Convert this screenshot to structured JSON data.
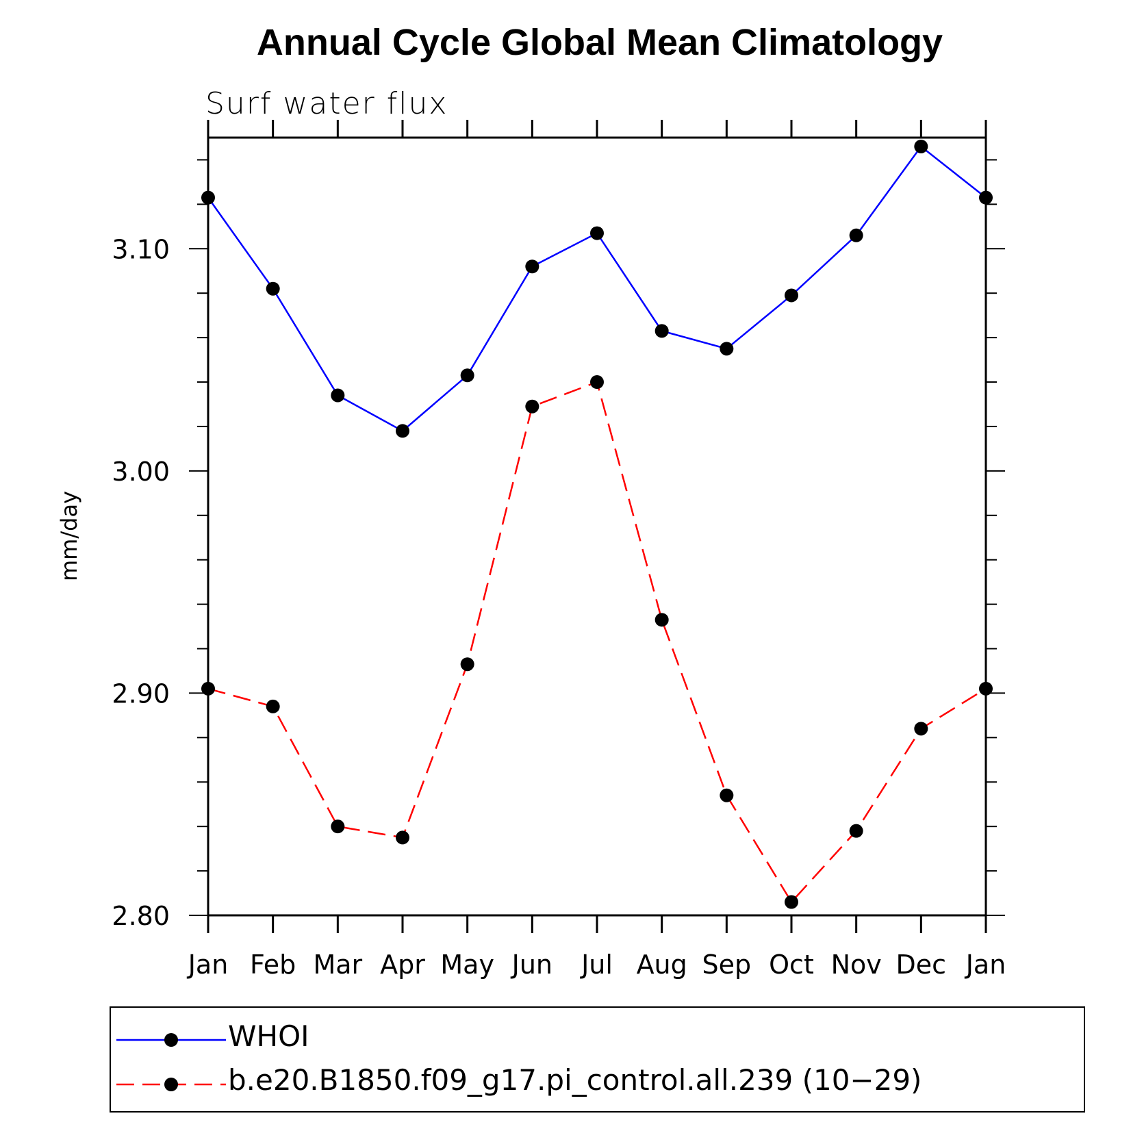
{
  "chart_data": {
    "type": "line",
    "title": "Annual Cycle Global Mean Climatology",
    "subtitle": "Surf water flux",
    "xlabel": "",
    "ylabel": "mm/day",
    "categories": [
      "Jan",
      "Feb",
      "Mar",
      "Apr",
      "May",
      "Jun",
      "Jul",
      "Aug",
      "Sep",
      "Oct",
      "Nov",
      "Dec",
      "Jan"
    ],
    "yticks": [
      "2.80",
      "2.90",
      "3.00",
      "3.10"
    ],
    "ylim": [
      2.8,
      3.15
    ],
    "grid": false,
    "legend_position": "bottom",
    "series": [
      {
        "name": "WHOI",
        "color": "#0000ff",
        "dash": "solid",
        "values": [
          3.123,
          3.082,
          3.034,
          3.018,
          3.043,
          3.092,
          3.107,
          3.063,
          3.055,
          3.079,
          3.106,
          3.146,
          3.123
        ]
      },
      {
        "name": "b.e20.B1850.f09_g17.pi_control.all.239 (10−29)",
        "color": "#ff0000",
        "dash": "dashed",
        "values": [
          2.902,
          2.894,
          2.84,
          2.835,
          2.913,
          3.029,
          3.04,
          2.933,
          2.854,
          2.806,
          2.838,
          2.884,
          2.902
        ]
      }
    ]
  }
}
